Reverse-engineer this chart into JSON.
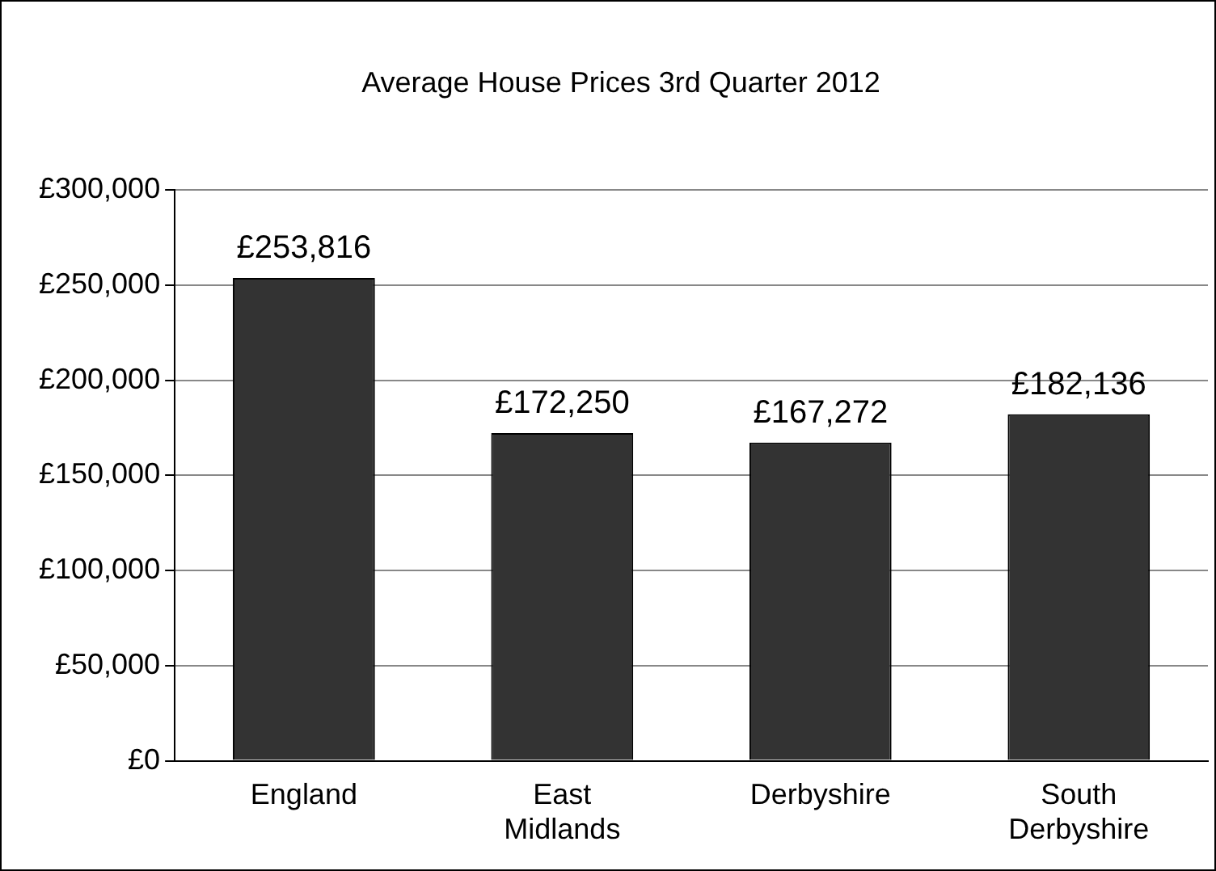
{
  "chart_data": {
    "type": "bar",
    "title": "Average House Prices 3rd Quarter 2012",
    "categories": [
      "England",
      "East Midlands",
      "Derbyshire",
      "South Derbyshire"
    ],
    "values": [
      253816,
      172250,
      167272,
      182136
    ],
    "value_labels": [
      "£253,816",
      "£172,250",
      "£167,272",
      "£182,136"
    ],
    "color": "#333333",
    "ylim": [
      0,
      300000
    ],
    "yticks": [
      {
        "value": 0,
        "label": "£0"
      },
      {
        "value": 50000,
        "label": "£50,000"
      },
      {
        "value": 100000,
        "label": "£100,000"
      },
      {
        "value": 150000,
        "label": "£150,000"
      },
      {
        "value": 200000,
        "label": "£200,000"
      },
      {
        "value": 250000,
        "label": "£250,000"
      },
      {
        "value": 300000,
        "label": "£300,000"
      }
    ],
    "grid": "y",
    "legend": false
  }
}
